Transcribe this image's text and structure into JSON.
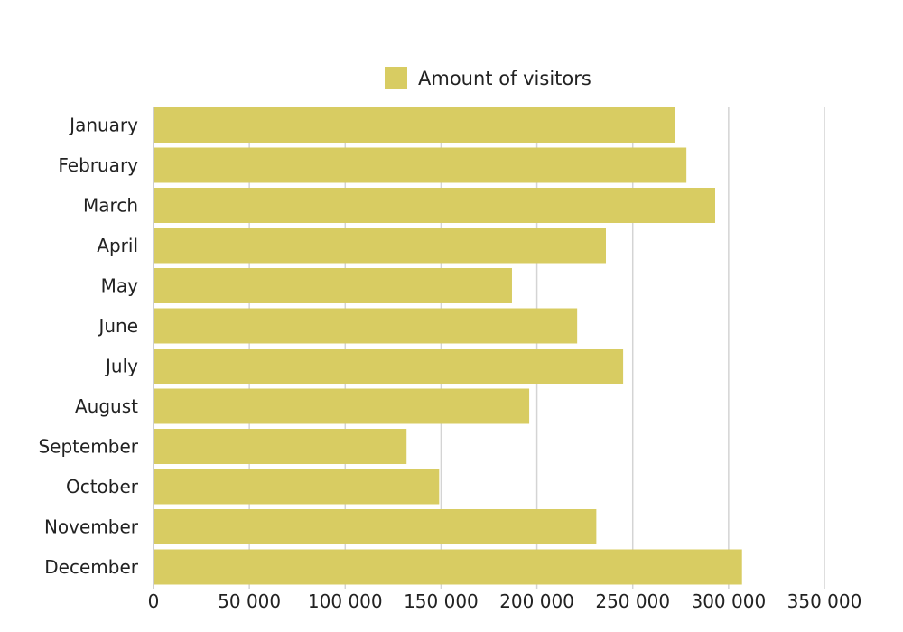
{
  "chart_data": {
    "type": "bar",
    "orientation": "horizontal",
    "categories": [
      "January",
      "February",
      "March",
      "April",
      "May",
      "June",
      "July",
      "August",
      "September",
      "October",
      "November",
      "December"
    ],
    "series": [
      {
        "name": "Amount of visitors",
        "color": "#d8cc62",
        "values": [
          272000,
          278000,
          293000,
          236000,
          187000,
          221000,
          245000,
          196000,
          132000,
          149000,
          231000,
          307000
        ]
      }
    ],
    "x_ticks": [
      "0",
      "50 000",
      "100 000",
      "150 000",
      "200 000",
      "250 000",
      "300 000",
      "350 000"
    ],
    "xlim": [
      0,
      350000
    ],
    "grid": true,
    "legend_position": "top-center",
    "title": "",
    "xlabel": "",
    "ylabel": ""
  }
}
